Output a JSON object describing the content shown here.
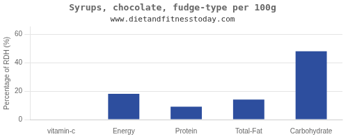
{
  "chart_data": {
    "type": "bar",
    "title": "Syrups, chocolate, fudge-type per 100g",
    "subtitle": "www.dietandfitnesstoday.com",
    "categories": [
      "vitamin-c",
      "Energy",
      "Protein",
      "Total-Fat",
      "Carbohydrate"
    ],
    "values": [
      0,
      18,
      9,
      14,
      48
    ],
    "color": "#2d4e9e",
    "ylabel": "Percentage of RDH (%)",
    "ylim": [
      0,
      65
    ],
    "yticks": [
      0,
      20,
      40,
      60
    ],
    "grid": true
  }
}
